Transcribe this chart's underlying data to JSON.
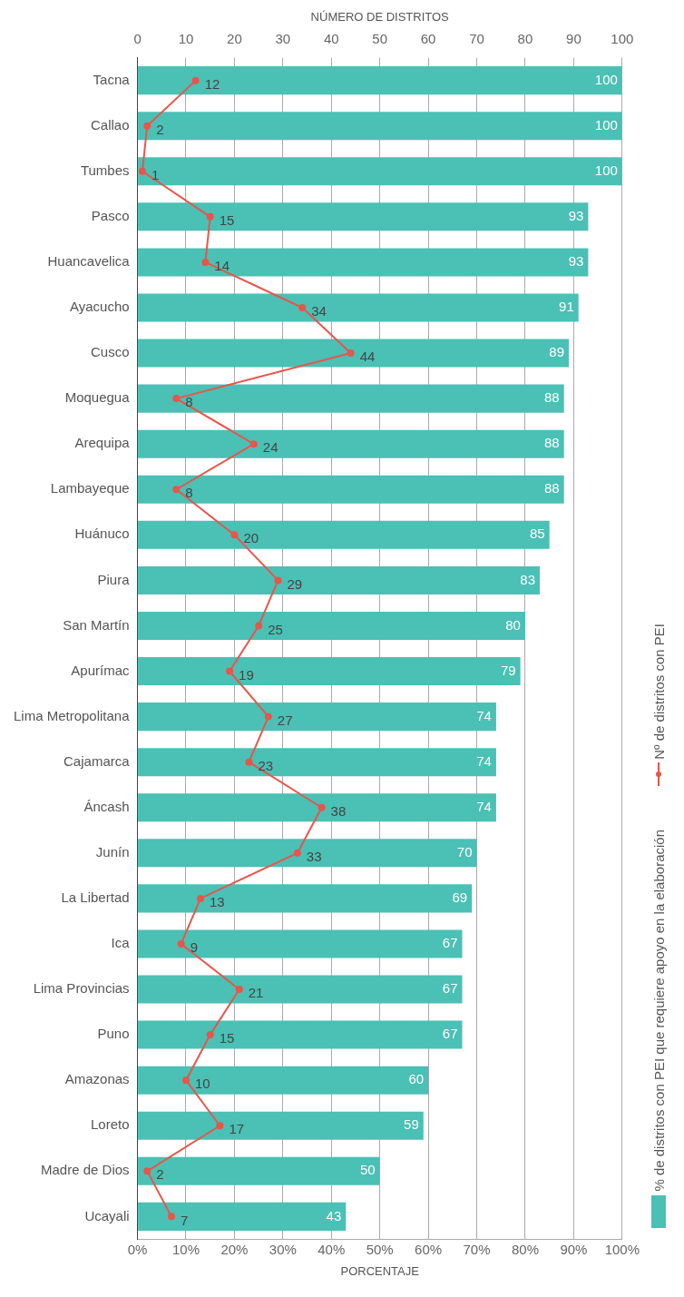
{
  "chart_data": {
    "type": "bar",
    "orientation": "horizontal",
    "xlabel": "PORCENTAJE",
    "x2label": "NÚMERO DE DISTRITOS",
    "categories": [
      "Tacna",
      "Callao",
      "Tumbes",
      "Pasco",
      "Huancavelica",
      "Ayacucho",
      "Cusco",
      "Moquegua",
      "Arequipa",
      "Lambayeque",
      "Huánuco",
      "Piura",
      "San Martín",
      "Apurímac",
      "Lima Metropolitana",
      "Cajamarca",
      "Áncash",
      "Junín",
      "La Libertad",
      "Ica",
      "Lima Provincias",
      "Puno",
      "Amazonas",
      "Loreto",
      "Madre de Dios",
      "Ucayali"
    ],
    "series": [
      {
        "name": "% de distritos con PEI que requiere apoyo en la elaboración",
        "color": "#4bc0b5",
        "values": [
          100,
          100,
          100,
          93,
          93,
          91,
          89,
          88,
          88,
          88,
          85,
          83,
          80,
          79,
          74,
          74,
          74,
          70,
          69,
          67,
          67,
          67,
          60,
          59,
          50,
          43
        ]
      },
      {
        "name": "Nº de distritos con PEI",
        "type": "line",
        "axis": "x2",
        "color": "#e8554a",
        "values": [
          12,
          2,
          1,
          15,
          14,
          34,
          44,
          8,
          24,
          8,
          20,
          29,
          25,
          19,
          27,
          23,
          38,
          33,
          13,
          9,
          21,
          15,
          10,
          17,
          2,
          7
        ]
      }
    ],
    "xlim": [
      0,
      100
    ],
    "xticks": [
      {
        "value": 0,
        "label": "0%"
      },
      {
        "value": 10,
        "label": "10%"
      },
      {
        "value": 20,
        "label": "20%"
      },
      {
        "value": 30,
        "label": "30%"
      },
      {
        "value": 40,
        "label": "40%"
      },
      {
        "value": 50,
        "label": "50%"
      },
      {
        "value": 60,
        "label": "60%"
      },
      {
        "value": 70,
        "label": "70%"
      },
      {
        "value": 80,
        "label": "80%"
      },
      {
        "value": 90,
        "label": "90%"
      },
      {
        "value": 100,
        "label": "100%"
      }
    ],
    "x2lim": [
      0,
      100
    ],
    "x2ticks": [
      0,
      10,
      20,
      30,
      40,
      50,
      60,
      70,
      80,
      90,
      100
    ],
    "grid": "x",
    "legend": "right",
    "data_labels": true,
    "marker": "circle",
    "line_style": "solid"
  }
}
